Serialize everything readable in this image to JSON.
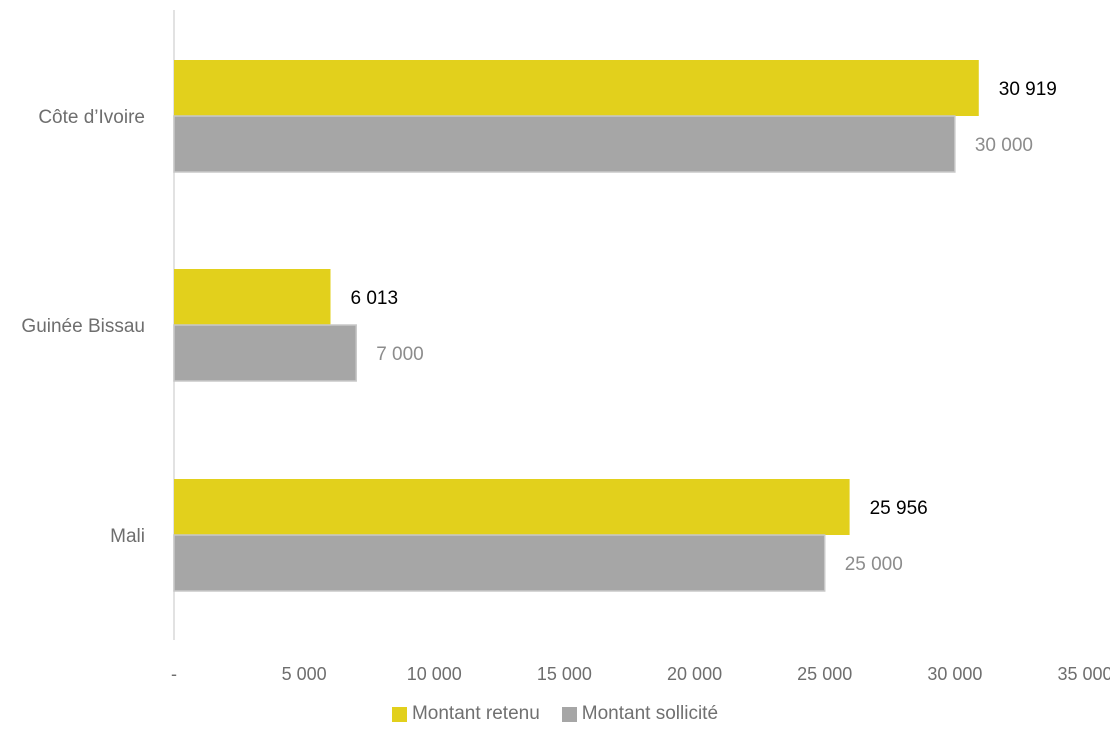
{
  "chart_data": {
    "type": "bar",
    "orientation": "horizontal",
    "categories": [
      "Côte d’Ivoire",
      "Guinée Bissau",
      "Mali"
    ],
    "series": [
      {
        "name": "Montant retenu",
        "values": [
          30919,
          6013,
          25956
        ],
        "labels": [
          "30 919",
          "6 013",
          "25 956"
        ],
        "color": "#e2d01c",
        "label_color": "#000000"
      },
      {
        "name": "Montant sollicité",
        "values": [
          30000,
          7000,
          25000
        ],
        "labels": [
          "30 000",
          "7 000",
          "25 000"
        ],
        "color": "#a6a6a6",
        "label_color": "#8c8c8c"
      }
    ],
    "xlim": [
      0,
      35000
    ],
    "xticks": [
      0,
      5000,
      10000,
      15000,
      20000,
      25000,
      30000,
      35000
    ],
    "xtick_labels": [
      "-",
      "5 000",
      "10 000",
      "15 000",
      "20 000",
      "25 000",
      "30 000",
      "35 000"
    ],
    "grid": false,
    "legend_position": "bottom",
    "title": "",
    "xlabel": "",
    "ylabel": ""
  }
}
